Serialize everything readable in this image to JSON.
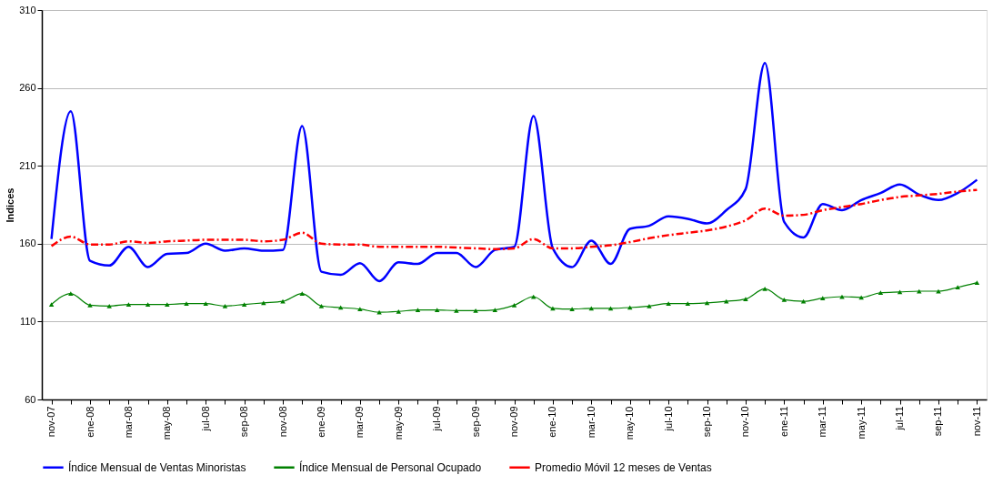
{
  "chart_data": {
    "type": "line",
    "ylabel": "Indices",
    "categories": [
      "nov-07",
      null,
      "ene-08",
      null,
      "mar-08",
      null,
      "may-08",
      null,
      "jul-08",
      null,
      "sep-08",
      null,
      "nov-08",
      null,
      "ene-09",
      null,
      "mar-09",
      null,
      "may-09",
      null,
      "jul-09",
      null,
      "sep-09",
      null,
      "nov-09",
      null,
      "ene-10",
      null,
      "mar-10",
      null,
      "may-10",
      null,
      "jul-10",
      null,
      "sep-10",
      null,
      "nov-10",
      null,
      "ene-11",
      null,
      "mar-11",
      null,
      "may-11",
      null,
      "jul-11",
      null,
      "sep-11",
      null,
      "nov-11"
    ],
    "series": [
      {
        "name": "Índice Mensual de Ventas Minoristas",
        "color": "#0000ff",
        "marker": "none",
        "line_style": "solid",
        "values": [
          163,
          245,
          149,
          146,
          158,
          145,
          153.5,
          154,
          160,
          155.5,
          157,
          155.5,
          156,
          235.5,
          142,
          140,
          147.5,
          136,
          148,
          147,
          154,
          154,
          145,
          156,
          158,
          242,
          157,
          145,
          162,
          147,
          169.5,
          171.5,
          177.5,
          176,
          173,
          181.5,
          195,
          276,
          174,
          164,
          185.5,
          181.5,
          188,
          192.5,
          198,
          191.5,
          188,
          192.5,
          201
        ]
      },
      {
        "name": "Índice Mensual de Personal Ocupado",
        "color": "#008000",
        "marker": "triangle",
        "line_style": "solid",
        "values": [
          121,
          128,
          120.5,
          120,
          121,
          121,
          121,
          121.5,
          121.5,
          120,
          121,
          122,
          123,
          128,
          120,
          119,
          118,
          116,
          116.5,
          117.5,
          117.5,
          117,
          117,
          117.5,
          120.5,
          126,
          118.5,
          118,
          118.5,
          118.5,
          119,
          120,
          121.5,
          121.5,
          122,
          123,
          124.5,
          131,
          124,
          123,
          125,
          126,
          125.5,
          128.5,
          129,
          129.5,
          129.5,
          132,
          135
        ]
      },
      {
        "name": "Promedio Móvil 12 meses de Ventas",
        "color": "#ff0000",
        "marker": "none",
        "line_style": "dashed",
        "values": [
          158.5,
          164.5,
          159.5,
          159.5,
          161.5,
          160.5,
          161.5,
          162,
          162.5,
          162.5,
          162.5,
          161.5,
          162.5,
          167,
          160,
          159.5,
          159.5,
          158,
          158,
          158,
          158,
          157.5,
          157,
          156.5,
          157,
          163,
          157,
          157,
          158,
          159,
          161,
          163.5,
          165.5,
          167,
          168.5,
          171,
          175,
          182.5,
          178,
          178.5,
          181.5,
          183.5,
          185.5,
          188,
          190,
          191,
          192,
          193.5,
          194.5
        ]
      }
    ],
    "ylim": [
      60,
      310
    ],
    "yticks": [
      60,
      110,
      160,
      210,
      260,
      310
    ],
    "grid": "y",
    "legend": "bottom"
  }
}
